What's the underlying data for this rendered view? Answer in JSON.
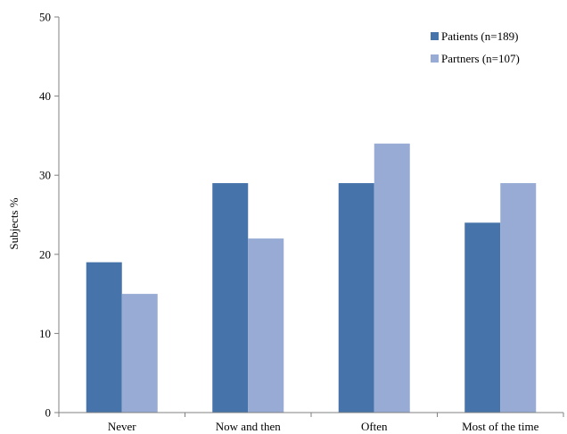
{
  "chart_data": {
    "type": "bar",
    "title": "",
    "xlabel": "",
    "ylabel": "Subjects %",
    "ylim": [
      0,
      50
    ],
    "yticks": [
      0,
      10,
      20,
      30,
      40,
      50
    ],
    "categories": [
      "Never",
      "Now and then",
      "Often",
      "Most of the time"
    ],
    "series": [
      {
        "name": "Patients (n=189)",
        "values": [
          19,
          29,
          29,
          24
        ],
        "color": "#4674aa"
      },
      {
        "name": "Partners (n=107)",
        "values": [
          15,
          22,
          34,
          29
        ],
        "color": "#97abd4"
      }
    ],
    "grid": false,
    "legend_position": "top-right"
  }
}
